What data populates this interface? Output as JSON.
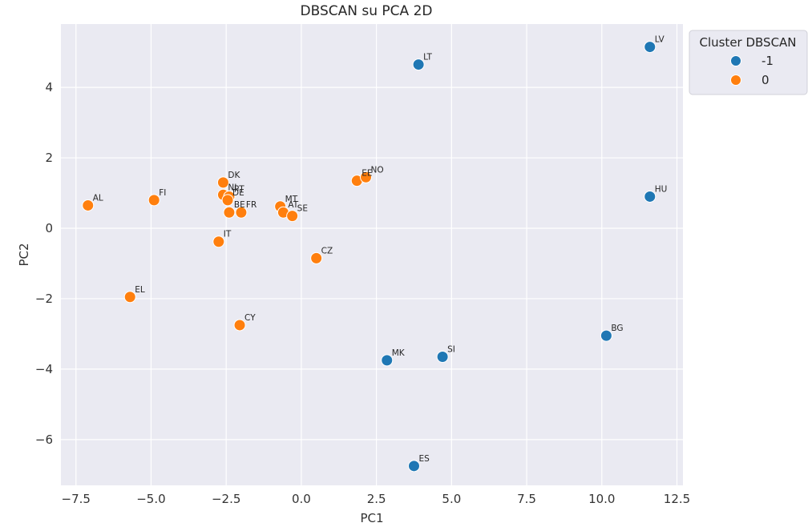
{
  "chart_data": {
    "type": "scatter",
    "title": "DBSCAN su PCA 2D",
    "xlabel": "PC1",
    "ylabel": "PC2",
    "xlim": [
      -8.0,
      12.7
    ],
    "ylim": [
      -7.3,
      5.8
    ],
    "xticks": [
      -7.5,
      -5.0,
      -2.5,
      0.0,
      2.5,
      5.0,
      7.5,
      10.0,
      12.5
    ],
    "xtick_labels": [
      "−7.5",
      "−5.0",
      "−2.5",
      "0.0",
      "2.5",
      "5.0",
      "7.5",
      "10.0",
      "12.5"
    ],
    "yticks": [
      -6,
      -4,
      -2,
      0,
      2,
      4
    ],
    "ytick_labels": [
      "−6",
      "−4",
      "−2",
      "0",
      "2",
      "4"
    ],
    "grid": true,
    "legend": {
      "title": "Cluster DBSCAN",
      "placement": "outside top-right",
      "entries": [
        {
          "label": "-1",
          "color": "#1f77b4"
        },
        {
          "label": "0",
          "color": "#ff7f0e"
        }
      ]
    },
    "colors": {
      "-1": "#1f77b4",
      "0": "#ff7f0e",
      "background": "#eaeaf2",
      "grid": "#ffffff"
    },
    "points": [
      {
        "label": "LV",
        "x": 11.6,
        "y": 5.15,
        "cluster": "-1"
      },
      {
        "label": "LT",
        "x": 3.9,
        "y": 4.65,
        "cluster": "-1"
      },
      {
        "label": "HU",
        "x": 11.6,
        "y": 0.9,
        "cluster": "-1"
      },
      {
        "label": "BG",
        "x": 10.15,
        "y": -3.05,
        "cluster": "-1"
      },
      {
        "label": "SI",
        "x": 4.7,
        "y": -3.65,
        "cluster": "-1"
      },
      {
        "label": "MK",
        "x": 2.85,
        "y": -3.75,
        "cluster": "-1"
      },
      {
        "label": "ES",
        "x": 3.75,
        "y": -6.75,
        "cluster": "-1"
      },
      {
        "label": "AL",
        "x": -7.1,
        "y": 0.65,
        "cluster": "0"
      },
      {
        "label": "FI",
        "x": -4.9,
        "y": 0.8,
        "cluster": "0"
      },
      {
        "label": "EL",
        "x": -5.7,
        "y": -1.95,
        "cluster": "0"
      },
      {
        "label": "DK",
        "x": -2.6,
        "y": 1.3,
        "cluster": "0"
      },
      {
        "label": "NL",
        "x": -2.6,
        "y": 0.95,
        "cluster": "0"
      },
      {
        "label": "PT",
        "x": -2.4,
        "y": 0.9,
        "cluster": "0"
      },
      {
        "label": "DE",
        "x": -2.45,
        "y": 0.8,
        "cluster": "0"
      },
      {
        "label": "BE",
        "x": -2.4,
        "y": 0.45,
        "cluster": "0"
      },
      {
        "label": "FR",
        "x": -2.0,
        "y": 0.45,
        "cluster": "0"
      },
      {
        "label": "IT",
        "x": -2.75,
        "y": -0.38,
        "cluster": "0"
      },
      {
        "label": "CY",
        "x": -2.05,
        "y": -2.75,
        "cluster": "0"
      },
      {
        "label": "MT",
        "x": -0.7,
        "y": 0.62,
        "cluster": "0"
      },
      {
        "label": "AT",
        "x": -0.6,
        "y": 0.45,
        "cluster": "0"
      },
      {
        "label": "SE",
        "x": -0.3,
        "y": 0.35,
        "cluster": "0"
      },
      {
        "label": "CZ",
        "x": 0.5,
        "y": -0.85,
        "cluster": "0"
      },
      {
        "label": "EE",
        "x": 1.85,
        "y": 1.35,
        "cluster": "0"
      },
      {
        "label": "NO",
        "x": 2.15,
        "y": 1.45,
        "cluster": "0"
      }
    ]
  }
}
